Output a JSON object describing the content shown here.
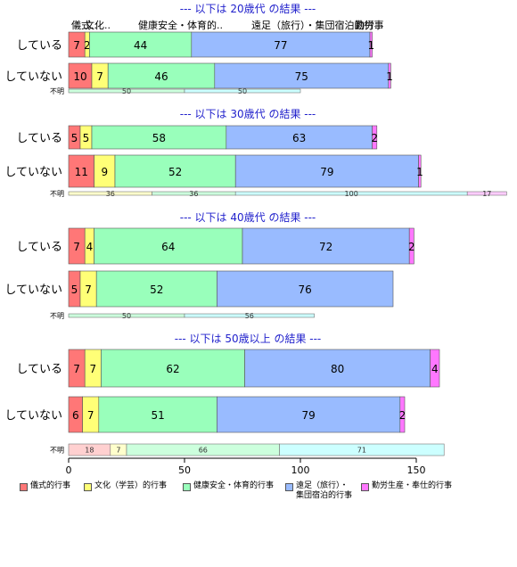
{
  "chart_data": {
    "type": "bar",
    "orientation": "horizontal",
    "stacked": true,
    "categories": [
      "儀式的行事",
      "文化（学芸）的行事",
      "健康安全・体育的行事",
      "遠足（旅行）・\n集団宿泊的行事",
      "勤労生産・奉仕的行事"
    ],
    "header_labels": [
      "儀式..",
      "文化..",
      "健康安全・体育的..",
      "遠足（旅行）・集団宿泊的行事",
      "勤労.."
    ],
    "colors": [
      "#ff7777",
      "#ffff77",
      "#99ffbb",
      "#99bbff",
      "#ff77ff"
    ],
    "unknown_colors": [
      "#ffd0d0",
      "#ffffcc",
      "#ccffdd",
      "#ccffff",
      "#ffccff"
    ],
    "xlim": [
      0,
      160
    ],
    "xticks": [
      0,
      50,
      100,
      150
    ],
    "panels": [
      {
        "title": "--- 以下は 20歳代 の結果 ---",
        "rows": [
          {
            "label": "している",
            "values": [
              7,
              2,
              44,
              77,
              1
            ]
          },
          {
            "label": "していない",
            "values": [
              10,
              7,
              46,
              75,
              1
            ]
          }
        ],
        "unknown": {
          "label": "不明",
          "values": [
            0,
            0,
            50,
            50,
            0
          ]
        }
      },
      {
        "title": "--- 以下は 30歳代 の結果 ---",
        "rows": [
          {
            "label": "している",
            "values": [
              5,
              5,
              58,
              63,
              2
            ]
          },
          {
            "label": "していない",
            "values": [
              11,
              9,
              52,
              79,
              1
            ]
          }
        ],
        "unknown": {
          "label": "不明",
          "values": [
            0,
            36,
            36,
            100,
            17
          ]
        }
      },
      {
        "title": "--- 以下は 40歳代 の結果 ---",
        "rows": [
          {
            "label": "している",
            "values": [
              7,
              4,
              64,
              72,
              2
            ]
          },
          {
            "label": "していない",
            "values": [
              5,
              7,
              52,
              76,
              0
            ]
          }
        ],
        "unknown": {
          "label": "不明",
          "values": [
            0,
            0,
            50,
            56,
            0
          ]
        }
      },
      {
        "title": "--- 以下は 50歳以上 の結果 ---",
        "rows": [
          {
            "label": "している",
            "values": [
              7,
              7,
              62,
              80,
              4
            ]
          },
          {
            "label": "していない",
            "values": [
              6,
              7,
              51,
              79,
              2
            ]
          }
        ],
        "unknown": {
          "label": "不明",
          "values": [
            18,
            7,
            66,
            71,
            0
          ]
        }
      }
    ]
  }
}
